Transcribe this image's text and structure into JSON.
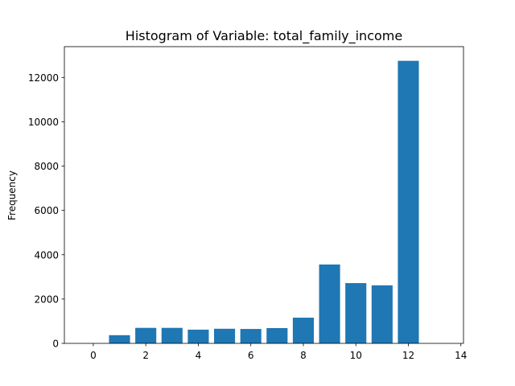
{
  "chart_data": {
    "type": "bar",
    "title": "Histogram of Variable: total_family_income",
    "xlabel": "",
    "ylabel": "Frequency",
    "x": [
      1,
      2,
      3,
      4,
      5,
      6,
      7,
      8,
      9,
      10,
      11,
      12
    ],
    "values": [
      370,
      700,
      700,
      620,
      660,
      650,
      690,
      1160,
      3560,
      2720,
      2620,
      12750
    ],
    "xlim": [
      -1.1,
      14.1
    ],
    "ylim": [
      0,
      13390
    ],
    "xticks": [
      0,
      2,
      4,
      6,
      8,
      10,
      12,
      14
    ],
    "yticks": [
      0,
      2000,
      4000,
      6000,
      8000,
      10000,
      12000
    ],
    "bar_color": "#1f77b4",
    "grid": false
  }
}
